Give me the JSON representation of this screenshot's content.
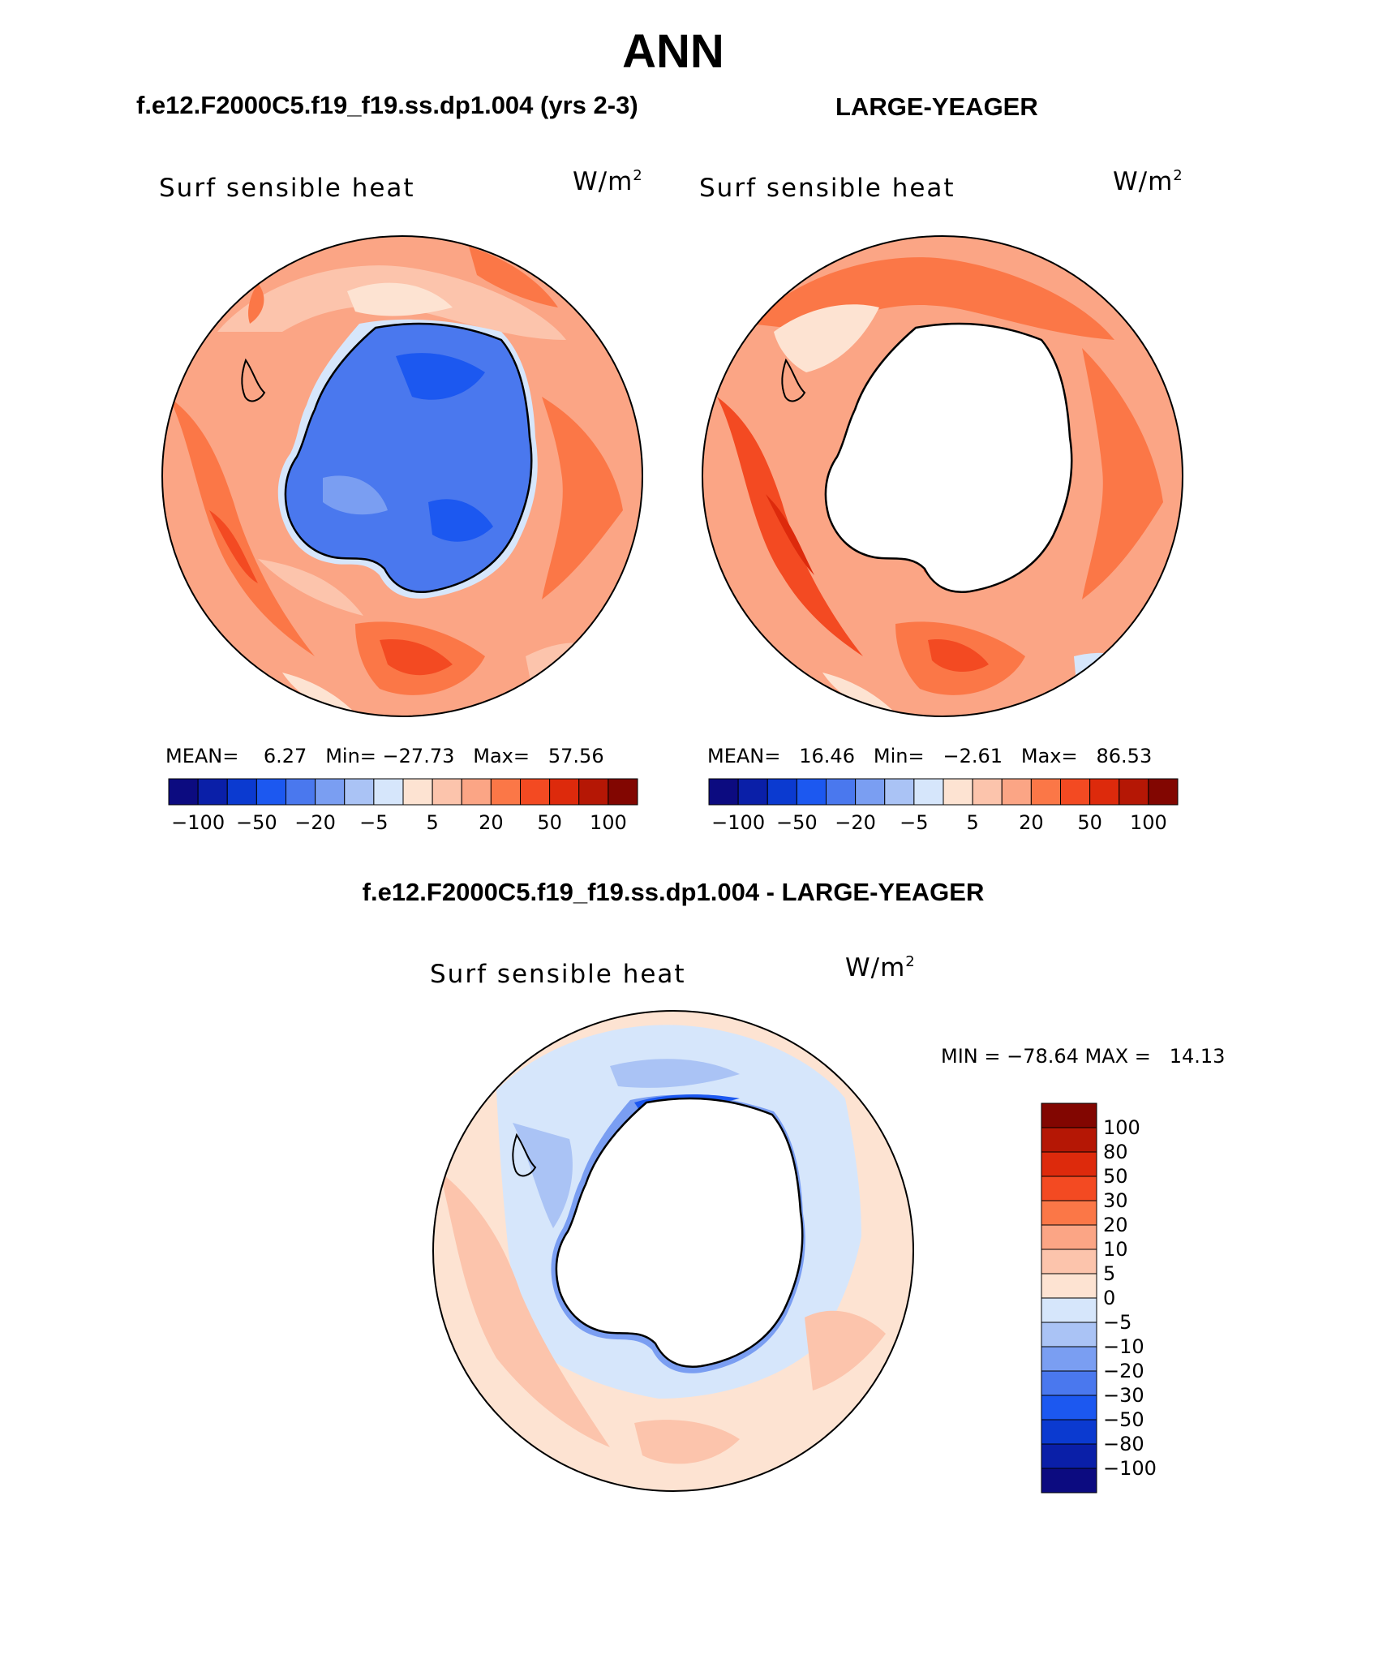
{
  "figure": {
    "title": "ANN",
    "variable": "Surf sensible heat",
    "units": "W/m",
    "units_exp": "2"
  },
  "panels": {
    "left": {
      "case_title": "f.e12.F2000C5.f19_f19.ss.dp1.004 (yrs 2-3)",
      "mean_label": "MEAN=",
      "mean_value": "6.27",
      "min_label": "Min=",
      "min_value": "−27.73",
      "max_label": "Max=",
      "max_value": "57.56",
      "continent_level": -20,
      "ocean_level": 12
    },
    "right": {
      "case_title": "LARGE-YEAGER",
      "mean_label": "MEAN=",
      "mean_value": "16.46",
      "min_label": "Min=",
      "min_value": "−2.61",
      "max_label": "Max=",
      "max_value": "86.53",
      "continent_level": null,
      "ocean_level": 18
    },
    "diff": {
      "case_title": "f.e12.F2000C5.f19_f19.ss.dp1.004 - LARGE-YEAGER",
      "minmax_text": "MIN = −78.64 MAX =   14.13",
      "ocean_level": 2
    }
  },
  "colorbar_main": {
    "colors": [
      "#0c0b80",
      "#0a1fa8",
      "#0b3ad0",
      "#1c58f0",
      "#4a78ee",
      "#7a9ef2",
      "#aac3f5",
      "#d6e6fb",
      "#fde3d2",
      "#fcc4ac",
      "#fba585",
      "#fb7747",
      "#f34a22",
      "#dd2a0c",
      "#b51705",
      "#820601"
    ],
    "tick_labels": [
      "−100",
      "−50",
      "−20",
      "−5",
      "5",
      "20",
      "50",
      "100"
    ]
  },
  "colorbar_diff": {
    "colors": [
      "#820601",
      "#b51705",
      "#dd2a0c",
      "#f34a22",
      "#fb7747",
      "#fba585",
      "#fcc4ac",
      "#fde3d2",
      "#d6e6fb",
      "#aac3f5",
      "#7a9ef2",
      "#4a78ee",
      "#1c58f0",
      "#0b3ad0",
      "#0a1fa8",
      "#0c0b80"
    ],
    "tick_labels": [
      "100",
      "80",
      "50",
      "30",
      "20",
      "10",
      "5",
      "0",
      "−5",
      "−10",
      "−20",
      "−30",
      "−50",
      "−80",
      "−100"
    ]
  }
}
